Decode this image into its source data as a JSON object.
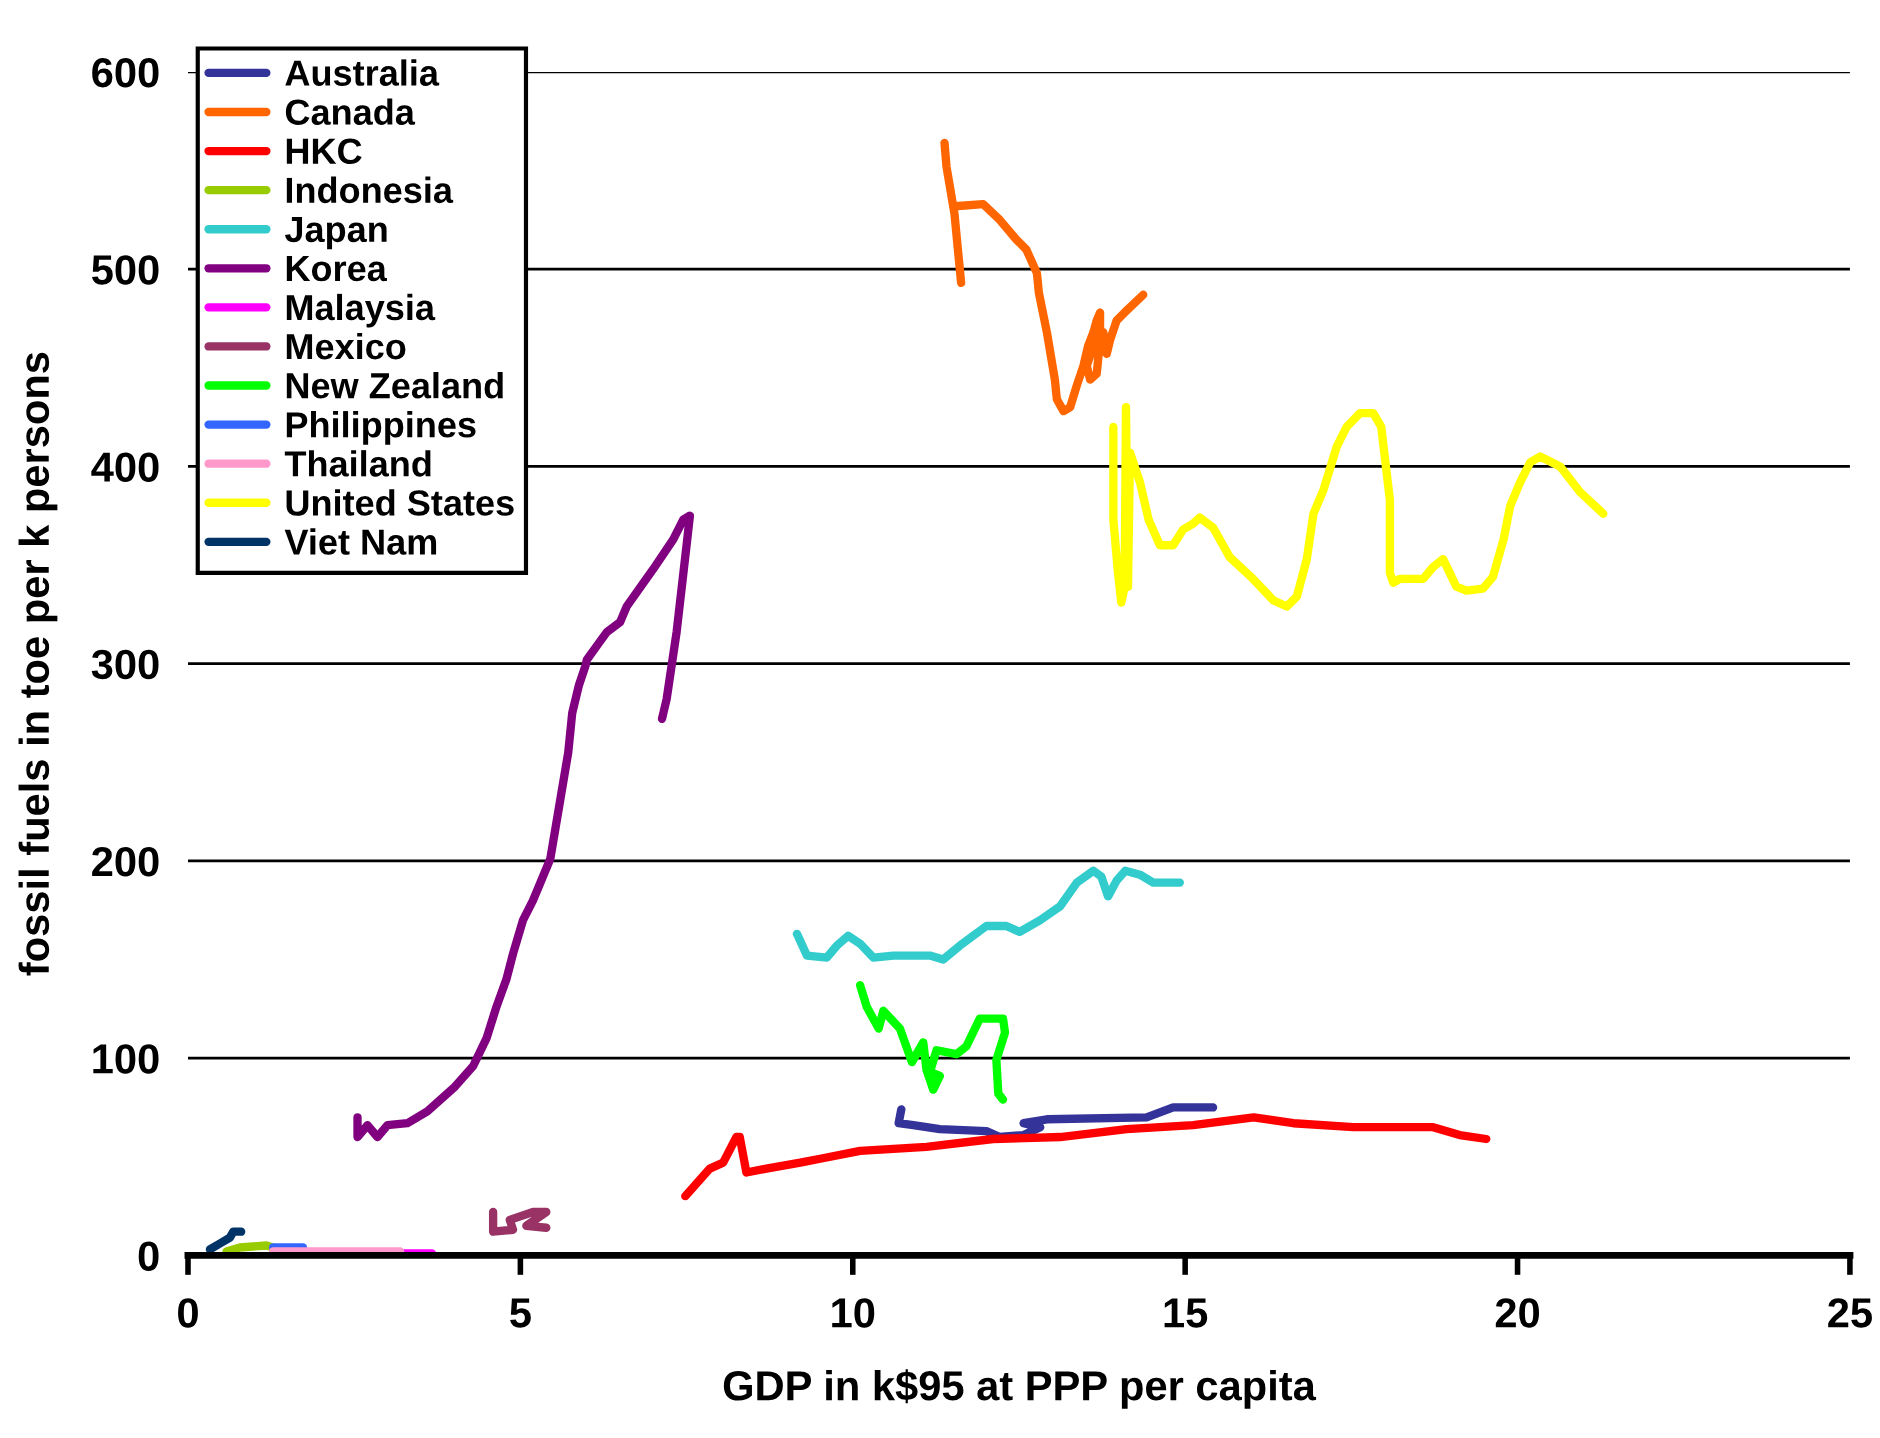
{
  "chart_data": {
    "type": "line",
    "xlabel": "GDP in k$95 at PPP per capita",
    "ylabel": "fossil fuels in toe per k persons",
    "xlim": [
      0,
      25
    ],
    "xticks": [
      0,
      5,
      10,
      15,
      20,
      25
    ],
    "ylim": [
      0,
      600
    ],
    "yticks": [
      0,
      100,
      200,
      300,
      400,
      500,
      600
    ],
    "grid": "y",
    "legend": "top left",
    "marker": "none",
    "line_style": "solid",
    "series": [
      {
        "name": "Australia",
        "color": "#333399",
        "x": [
          10.73,
          10.69,
          10.91,
          11.31,
          12.01,
          12.21,
          12.57,
          12.82,
          12.57,
          12.92,
          14.42,
          14.82,
          15.42
        ],
        "values": [
          74,
          67,
          66,
          64,
          63,
          60,
          61,
          65,
          67,
          69,
          70,
          75,
          75
        ]
      },
      {
        "name": "Canada",
        "color": "#ff6600",
        "x": [
          11.63,
          11.53,
          11.41,
          11.38,
          11.41,
          11.51,
          11.59,
          11.96,
          12.21,
          12.46,
          12.61,
          12.77,
          12.8,
          12.92,
          13.04,
          13.07,
          13.17,
          13.27,
          13.37,
          13.47,
          13.54,
          13.62,
          13.67,
          13.72,
          13.72,
          13.67,
          13.57,
          13.52,
          13.62,
          13.77,
          13.82,
          13.87,
          13.97,
          14.12,
          14.37
        ],
        "values": [
          493,
          528,
          552,
          564,
          552,
          532,
          532,
          533,
          525,
          515,
          510,
          498,
          488,
          468,
          444,
          434,
          428,
          430,
          441,
          451,
          461,
          468,
          474,
          478,
          464,
          447,
          444,
          451,
          461,
          468,
          457,
          464,
          474,
          479,
          487
        ]
      },
      {
        "name": "HKC",
        "color": "#ff0000",
        "x": [
          7.48,
          7.85,
          8.05,
          8.25,
          8.3,
          8.4,
          8.7,
          9.21,
          9.51,
          10.11,
          11.11,
          12.11,
          13.12,
          14.12,
          15.12,
          16.03,
          16.63,
          17.53,
          18.73,
          19.13,
          19.53
        ],
        "values": [
          30,
          44,
          47,
          60,
          60,
          42,
          44,
          47,
          49,
          53,
          55,
          59,
          60,
          64,
          66,
          70,
          67,
          65,
          65,
          61,
          59
        ]
      },
      {
        "name": "Indonesia",
        "color": "#99cc00",
        "x": [
          0.58,
          0.78,
          1.18,
          1.28
        ],
        "values": [
          2,
          4,
          5,
          4
        ]
      },
      {
        "name": "Japan",
        "color": "#33cccc",
        "x": [
          9.16,
          9.31,
          9.61,
          9.76,
          9.93,
          10.11,
          10.31,
          10.61,
          11.16,
          11.36,
          11.61,
          12.01,
          12.31,
          12.51,
          12.82,
          13.12,
          13.37,
          13.62,
          13.74,
          13.84,
          13.97,
          14.1,
          14.32,
          14.52,
          14.92
        ],
        "values": [
          163,
          152,
          151,
          157,
          162,
          158,
          151,
          152,
          152,
          150,
          157,
          167,
          167,
          164,
          170,
          177,
          189,
          195,
          192,
          182,
          190,
          195,
          193,
          189,
          189
        ]
      },
      {
        "name": "Korea",
        "color": "#800080",
        "x": [
          2.55,
          2.55,
          2.7,
          2.85,
          3.0,
          3.3,
          3.6,
          4.0,
          4.29,
          4.49,
          4.64,
          4.79,
          4.89,
          5.04,
          5.19,
          5.45,
          5.6,
          5.72,
          5.78,
          5.88,
          5.98,
          6.0,
          6.15,
          6.3,
          6.5,
          6.6,
          7.0,
          7.3,
          7.45,
          7.55,
          7.5,
          7.35,
          7.2,
          7.13
        ],
        "values": [
          70,
          60,
          66,
          60,
          66,
          67,
          73,
          85,
          96,
          110,
          126,
          140,
          153,
          170,
          180,
          201,
          231,
          255,
          275,
          289,
          299,
          302,
          309,
          316,
          321,
          329,
          348,
          363,
          373,
          375,
          360,
          316,
          282,
          272
        ]
      },
      {
        "name": "Malaysia",
        "color": "#ff00ff",
        "x": [
          3.19,
          3.67
        ],
        "values": [
          1,
          1
        ]
      },
      {
        "name": "Mexico",
        "color": "#993366",
        "x": [
          4.59,
          4.59,
          4.89,
          4.84,
          5.19,
          5.39,
          5.09,
          5.39
        ],
        "values": [
          22,
          12,
          13,
          18,
          22,
          22,
          15,
          14
        ]
      },
      {
        "name": "New Zealand",
        "color": "#00ff00",
        "x": [
          10.11,
          10.21,
          10.39,
          10.46,
          10.71,
          10.89,
          11.06,
          11.11,
          11.21,
          11.31,
          11.16,
          11.26,
          11.56,
          11.71,
          11.91,
          12.26,
          12.29,
          12.16,
          12.19,
          12.26
        ],
        "values": [
          137,
          126,
          115,
          124,
          115,
          98,
          108,
          94,
          84,
          91,
          93,
          104,
          102,
          106,
          120,
          120,
          113,
          99,
          82,
          79
        ]
      },
      {
        "name": "Philippines",
        "color": "#3366ff",
        "x": [
          1.28,
          1.73
        ],
        "values": [
          4,
          4
        ]
      },
      {
        "name": "Thailand",
        "color": "#ff99cc",
        "x": [
          1.28,
          3.19
        ],
        "values": [
          2,
          2
        ]
      },
      {
        "name": "United States",
        "color": "#ffff00",
        "x": [
          13.92,
          13.92,
          13.99,
          14.04,
          14.09,
          14.11,
          14.14,
          14.17,
          14.32,
          14.45,
          14.62,
          14.82,
          14.97,
          15.12,
          15.22,
          15.42,
          15.67,
          16.02,
          16.33,
          16.53,
          16.68,
          16.83,
          16.93,
          17.08,
          17.28,
          17.43,
          17.63,
          17.83,
          17.95,
          18.03,
          18.08,
          18.08,
          18.13,
          18.23,
          18.58,
          18.73,
          18.88,
          18.98,
          19.08,
          19.23,
          19.48,
          19.63,
          19.79,
          19.89,
          20.04,
          20.19,
          20.34,
          20.64,
          20.94,
          21.29
        ],
        "values": [
          420,
          373,
          346,
          331,
          339,
          430,
          339,
          407,
          392,
          373,
          360,
          360,
          368,
          371,
          374,
          369,
          354,
          343,
          332,
          329,
          334,
          353,
          376,
          388,
          410,
          420,
          427,
          427,
          420,
          397,
          383,
          346,
          341,
          343,
          343,
          349,
          353,
          346,
          339,
          337,
          338,
          344,
          363,
          380,
          392,
          402,
          405,
          400,
          387,
          376
        ]
      },
      {
        "name": "Viet Nam",
        "color": "#003366",
        "x": [
          0.33,
          0.48,
          0.63,
          0.68,
          0.8
        ],
        "values": [
          3,
          6,
          9,
          12,
          12
        ]
      }
    ]
  }
}
